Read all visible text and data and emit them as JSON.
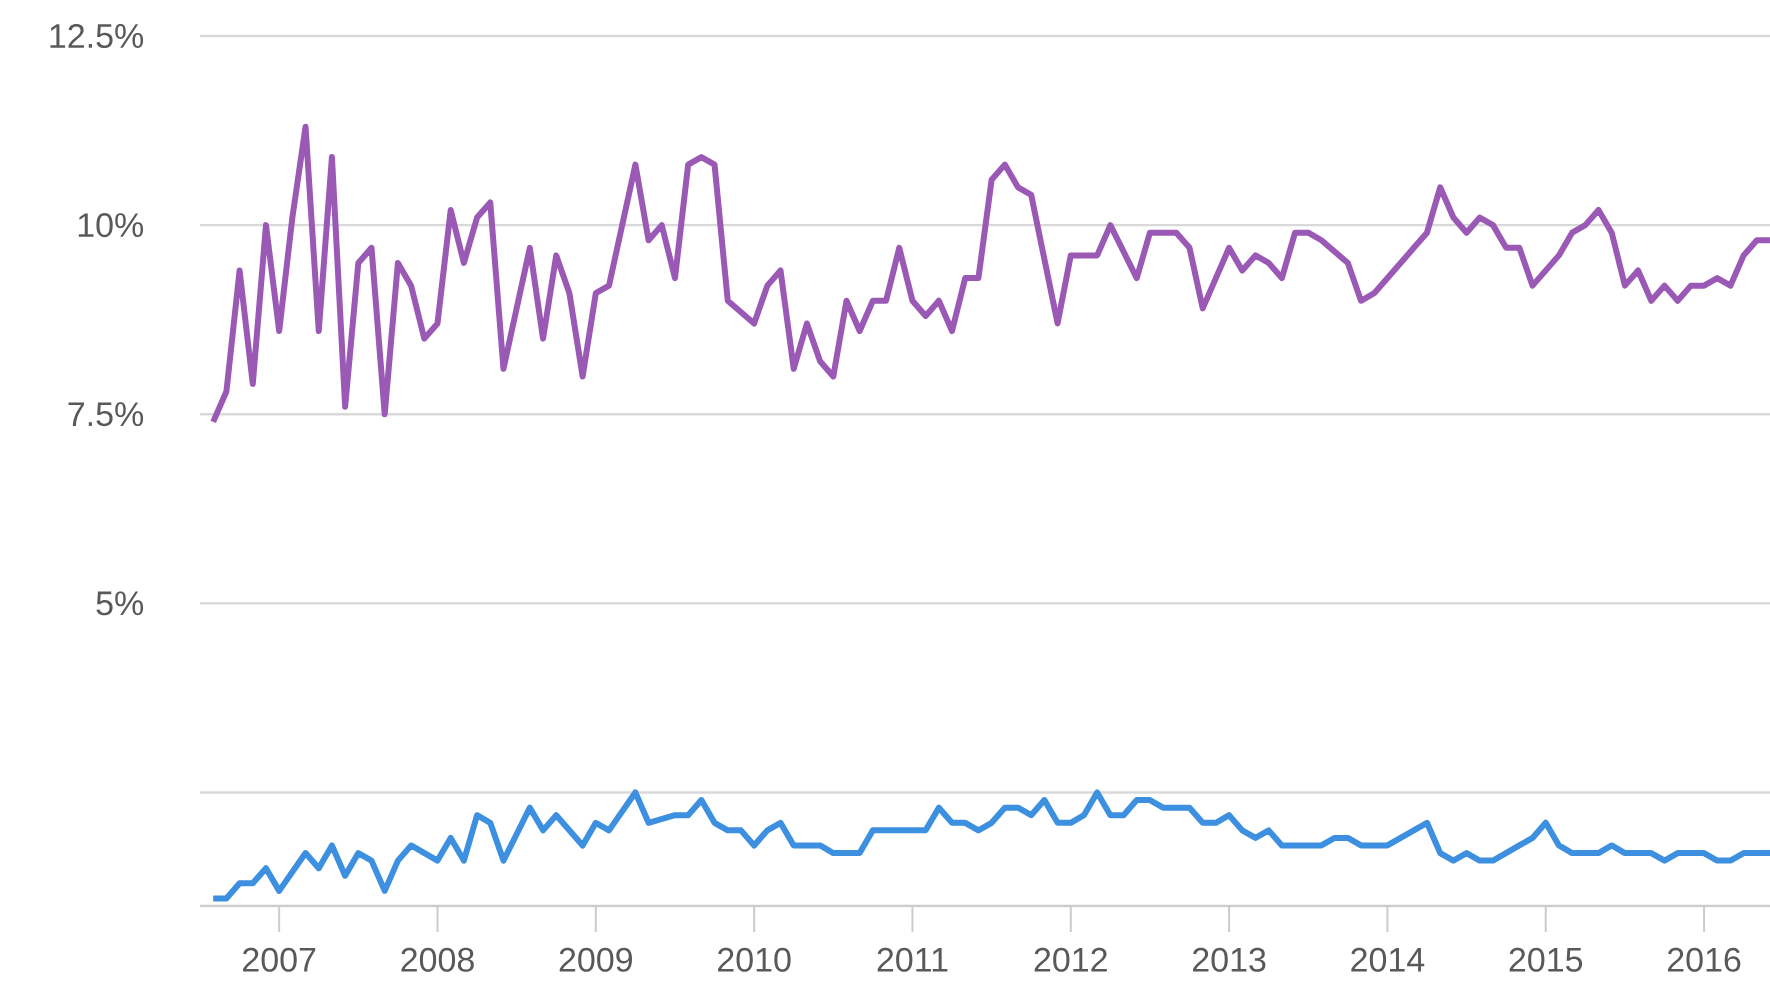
{
  "chart_data": {
    "type": "line",
    "grid": "y",
    "marker": "none",
    "line_style": "solid",
    "xlim": [
      "2006-07",
      "2016-06"
    ],
    "xticks": [
      "2007",
      "2008",
      "2009",
      "2010",
      "2011",
      "2012",
      "2013",
      "2014",
      "2015",
      "2016"
    ],
    "ylim": [
      1,
      12.5
    ],
    "yticks": [
      {
        "value": 2.5,
        "label": null
      },
      {
        "value": 5,
        "label": "5%"
      },
      {
        "value": 7.5,
        "label": "7.5%"
      },
      {
        "value": 10,
        "label": "10%"
      },
      {
        "value": 12.5,
        "label": "12.5%"
      }
    ],
    "series": [
      {
        "color": "#9b59b6",
        "x": [
          "2006-08",
          "2006-09",
          "2006-10",
          "2006-11",
          "2006-12",
          "2007-01",
          "2007-02",
          "2007-03",
          "2007-04",
          "2007-05",
          "2007-06",
          "2007-07",
          "2007-08",
          "2007-09",
          "2007-10",
          "2007-11",
          "2007-12",
          "2008-01",
          "2008-02",
          "2008-03",
          "2008-04",
          "2008-05",
          "2008-06",
          "2008-08",
          "2008-09",
          "2008-10",
          "2008-11",
          "2008-12",
          "2009-01",
          "2009-02",
          "2009-04",
          "2009-05",
          "2009-06",
          "2009-07",
          "2009-08",
          "2009-09",
          "2009-10",
          "2009-11",
          "2010-01",
          "2010-02",
          "2010-03",
          "2010-04",
          "2010-05",
          "2010-06",
          "2010-07",
          "2010-08",
          "2010-09",
          "2010-10",
          "2010-11",
          "2010-12",
          "2011-01",
          "2011-02",
          "2011-03",
          "2011-04",
          "2011-05",
          "2011-06",
          "2011-07",
          "2011-08",
          "2011-09",
          "2011-10",
          "2011-12",
          "2012-01",
          "2012-03",
          "2012-04",
          "2012-06",
          "2012-07",
          "2012-09",
          "2012-10",
          "2012-11",
          "2013-01",
          "2013-02",
          "2013-03",
          "2013-04",
          "2013-05",
          "2013-06",
          "2013-07",
          "2013-08",
          "2013-10",
          "2013-11",
          "2013-12",
          "2014-02",
          "2014-03",
          "2014-04",
          "2014-05",
          "2014-06",
          "2014-07",
          "2014-08",
          "2014-09",
          "2014-10",
          "2014-11",
          "2014-12",
          "2015-01",
          "2015-02",
          "2015-03",
          "2015-04",
          "2015-05",
          "2015-06",
          "2015-07",
          "2015-08",
          "2015-09",
          "2015-10",
          "2015-11",
          "2015-12",
          "2016-01",
          "2016-02",
          "2016-03",
          "2016-04",
          "2016-05",
          "2016-06"
        ],
        "values": [
          7.4,
          7.8,
          9.4,
          7.9,
          10.0,
          8.6,
          10.1,
          11.3,
          8.6,
          10.9,
          7.6,
          9.5,
          9.7,
          7.5,
          9.5,
          9.2,
          8.5,
          8.7,
          10.2,
          9.5,
          10.1,
          10.3,
          8.1,
          9.7,
          8.5,
          9.6,
          9.1,
          8.0,
          9.1,
          9.2,
          10.8,
          9.8,
          10.0,
          9.3,
          10.8,
          10.9,
          10.8,
          9.0,
          8.7,
          9.2,
          9.4,
          8.1,
          8.7,
          8.2,
          8.0,
          9.0,
          8.6,
          9.0,
          9.0,
          9.7,
          9.0,
          8.8,
          9.0,
          8.6,
          9.3,
          9.3,
          10.6,
          10.8,
          10.5,
          10.4,
          8.7,
          9.6,
          9.6,
          10.0,
          9.3,
          9.9,
          9.9,
          9.7,
          8.9,
          9.7,
          9.4,
          9.6,
          9.5,
          9.3,
          9.9,
          9.9,
          9.8,
          9.5,
          9.0,
          9.1,
          9.5,
          9.7,
          9.9,
          10.5,
          10.1,
          9.9,
          10.1,
          10.0,
          9.7,
          9.7,
          9.2,
          9.4,
          9.6,
          9.9,
          10.0,
          10.2,
          9.9,
          9.2,
          9.4,
          9.0,
          9.2,
          9.0,
          9.2,
          9.2,
          9.3,
          9.2,
          9.6,
          9.8,
          9.8
        ]
      },
      {
        "color": "#3d8fe0",
        "x": [
          "2006-08",
          "2006-09",
          "2006-10",
          "2006-11",
          "2006-12",
          "2007-01",
          "2007-03",
          "2007-04",
          "2007-05",
          "2007-06",
          "2007-07",
          "2007-08",
          "2007-09",
          "2007-10",
          "2007-11",
          "2008-01",
          "2008-02",
          "2008-03",
          "2008-04",
          "2008-05",
          "2008-06",
          "2008-08",
          "2008-09",
          "2008-10",
          "2008-12",
          "2009-01",
          "2009-02",
          "2009-04",
          "2009-05",
          "2009-07",
          "2009-08",
          "2009-09",
          "2009-10",
          "2009-11",
          "2009-12",
          "2010-01",
          "2010-02",
          "2010-03",
          "2010-04",
          "2010-06",
          "2010-07",
          "2010-08",
          "2010-09",
          "2010-10",
          "2010-12",
          "2011-02",
          "2011-03",
          "2011-04",
          "2011-05",
          "2011-06",
          "2011-07",
          "2011-08",
          "2011-09",
          "2011-10",
          "2011-11",
          "2011-12",
          "2012-01",
          "2012-02",
          "2012-03",
          "2012-04",
          "2012-05",
          "2012-06",
          "2012-07",
          "2012-08",
          "2012-10",
          "2012-11",
          "2012-12",
          "2013-01",
          "2013-02",
          "2013-03",
          "2013-04",
          "2013-05",
          "2013-07",
          "2013-08",
          "2013-09",
          "2013-10",
          "2013-11",
          "2014-01",
          "2014-02",
          "2014-04",
          "2014-05",
          "2014-06",
          "2014-07",
          "2014-08",
          "2014-09",
          "2014-11",
          "2014-12",
          "2015-01",
          "2015-02",
          "2015-03",
          "2015-04",
          "2015-05",
          "2015-06",
          "2015-07",
          "2015-08",
          "2015-09",
          "2015-10",
          "2015-11",
          "2016-01",
          "2016-02",
          "2016-03",
          "2016-04",
          "2016-05",
          "2016-06"
        ],
        "values": [
          1.1,
          1.1,
          1.3,
          1.3,
          1.5,
          1.2,
          1.7,
          1.5,
          1.8,
          1.4,
          1.7,
          1.6,
          1.2,
          1.6,
          1.8,
          1.6,
          1.9,
          1.6,
          2.2,
          2.1,
          1.6,
          2.3,
          2.0,
          2.2,
          1.8,
          2.1,
          2.0,
          2.5,
          2.1,
          2.2,
          2.2,
          2.4,
          2.1,
          2.0,
          2.0,
          1.8,
          2.0,
          2.1,
          1.8,
          1.8,
          1.7,
          1.7,
          1.7,
          2.0,
          2.0,
          2.0,
          2.3,
          2.1,
          2.1,
          2.0,
          2.1,
          2.3,
          2.3,
          2.2,
          2.4,
          2.1,
          2.1,
          2.2,
          2.5,
          2.2,
          2.2,
          2.4,
          2.4,
          2.3,
          2.3,
          2.1,
          2.1,
          2.2,
          2.0,
          1.9,
          2.0,
          1.8,
          1.8,
          1.8,
          1.9,
          1.9,
          1.8,
          1.8,
          1.9,
          2.1,
          1.7,
          1.6,
          1.7,
          1.6,
          1.6,
          1.8,
          1.9,
          2.1,
          1.8,
          1.7,
          1.7,
          1.7,
          1.8,
          1.7,
          1.7,
          1.7,
          1.6,
          1.7,
          1.7,
          1.6,
          1.6,
          1.7,
          1.7,
          1.7
        ]
      }
    ]
  }
}
